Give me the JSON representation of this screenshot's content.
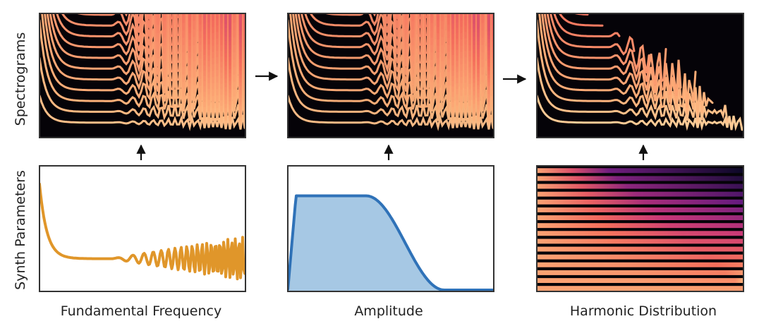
{
  "row_labels": {
    "top": "Spectrograms",
    "bottom": "Synth Parameters"
  },
  "column_labels": {
    "left": "Fundamental Frequency",
    "middle": "Amplitude",
    "right": "Harmonic Distribution"
  },
  "colors": {
    "f0_line": "#e0962a",
    "amp_line": "#2f72b8",
    "amp_fill": "#a6c8e4",
    "spectrogram_bg": "#050308",
    "panel_border": "#333333"
  },
  "colormap": "magma",
  "harmonics_count": 16,
  "flow_arrows": [
    "right",
    "right",
    "up",
    "up",
    "up"
  ]
}
